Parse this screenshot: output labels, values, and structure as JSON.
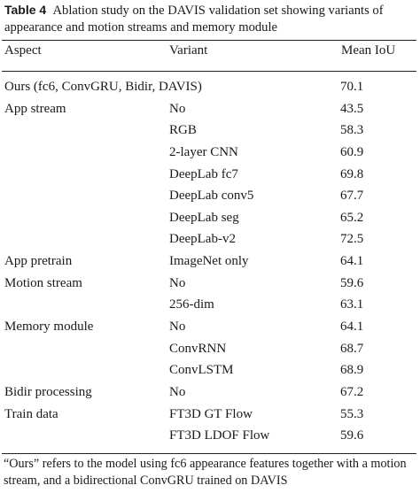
{
  "caption": {
    "label": "Table 4",
    "text": "Ablation study on the DAVIS validation set showing variants of appearance and motion streams and memory module"
  },
  "headers": {
    "aspect": "Aspect",
    "variant": "Variant",
    "mean_iou": "Mean IoU"
  },
  "rows": [
    {
      "aspect": "Ours (fc6, ConvGRU, Bidir, DAVIS)",
      "variant": "",
      "iou": "70.1"
    },
    {
      "aspect": "App stream",
      "variant": "No",
      "iou": "43.5"
    },
    {
      "aspect": "",
      "variant": "RGB",
      "iou": "58.3"
    },
    {
      "aspect": "",
      "variant": "2-layer CNN",
      "iou": "60.9"
    },
    {
      "aspect": "",
      "variant": "DeepLab fc7",
      "iou": "69.8"
    },
    {
      "aspect": "",
      "variant": "DeepLab conv5",
      "iou": "67.7"
    },
    {
      "aspect": "",
      "variant": "DeepLab seg",
      "iou": "65.2"
    },
    {
      "aspect": "",
      "variant": "DeepLab-v2",
      "iou": "72.5"
    },
    {
      "aspect": "App pretrain",
      "variant": "ImageNet only",
      "iou": "64.1"
    },
    {
      "aspect": "Motion stream",
      "variant": "No",
      "iou": "59.6"
    },
    {
      "aspect": "",
      "variant": "256-dim",
      "iou": "63.1"
    },
    {
      "aspect": "Memory module",
      "variant": "No",
      "iou": "64.1"
    },
    {
      "aspect": "",
      "variant": "ConvRNN",
      "iou": "68.7"
    },
    {
      "aspect": "",
      "variant": "ConvLSTM",
      "iou": "68.9"
    },
    {
      "aspect": "Bidir processing",
      "variant": "No",
      "iou": "67.2"
    },
    {
      "aspect": "Train data",
      "variant": "FT3D GT Flow",
      "iou": "55.3"
    },
    {
      "aspect": "",
      "variant": "FT3D LDOF Flow",
      "iou": "59.6"
    }
  ],
  "footnote": "“Ours” refers to the model using fc6 appearance features together with a motion stream, and a bidirectional ConvGRU trained on DAVIS"
}
